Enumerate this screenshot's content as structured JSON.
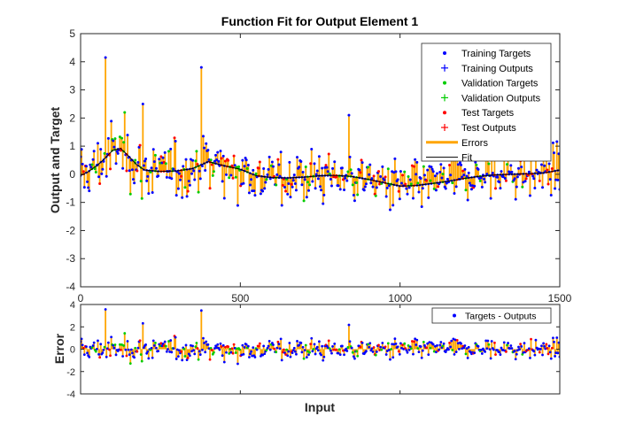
{
  "chart_data": [
    {
      "type": "scatter",
      "title": "Function Fit for Output Element 1",
      "xlabel": "",
      "ylabel": "Output and Target",
      "xlim": [
        0,
        1500
      ],
      "ylim": [
        -4,
        5
      ],
      "x_ticks": [
        0,
        500,
        1000,
        1500
      ],
      "y_ticks": [
        -4,
        -3,
        -2,
        -1,
        0,
        1,
        2,
        3,
        4,
        5
      ],
      "legend_placement": "top-right",
      "legend": [
        {
          "label": "Training Targets",
          "marker": "dot",
          "color": "#0000ff"
        },
        {
          "label": "Training Outputs",
          "marker": "plus",
          "color": "#0000ff"
        },
        {
          "label": "Validation Targets",
          "marker": "dot",
          "color": "#00cc00"
        },
        {
          "label": "Validation Outputs",
          "marker": "plus",
          "color": "#00cc00"
        },
        {
          "label": "Test Targets",
          "marker": "dot",
          "color": "#ff0000"
        },
        {
          "label": "Test Outputs",
          "marker": "plus",
          "color": "#ff0000"
        },
        {
          "label": "Errors",
          "marker": "line",
          "color": "#ffa500"
        },
        {
          "label": "Fit",
          "marker": "line",
          "color": "#000000"
        }
      ],
      "fit_curve": {
        "x": [
          0,
          25,
          50,
          75,
          100,
          125,
          150,
          175,
          200,
          250,
          300,
          350,
          400,
          450,
          500,
          550,
          600,
          650,
          700,
          750,
          800,
          850,
          900,
          950,
          1000,
          1050,
          1100,
          1150,
          1200,
          1250,
          1300,
          1350,
          1400,
          1450,
          1500
        ],
        "y": [
          -0.05,
          0.1,
          0.3,
          0.55,
          0.85,
          0.92,
          0.65,
          0.35,
          0.15,
          0.1,
          0.12,
          0.2,
          0.45,
          0.3,
          0.18,
          -0.05,
          -0.12,
          -0.13,
          -0.1,
          -0.05,
          -0.04,
          -0.08,
          -0.18,
          -0.3,
          -0.42,
          -0.4,
          -0.33,
          -0.25,
          -0.15,
          -0.07,
          -0.02,
          0.0,
          0.02,
          0.05,
          0.15
        ]
      }
    },
    {
      "type": "scatter",
      "title": "",
      "xlabel": "Input",
      "ylabel": "Error",
      "xlim": [
        0,
        1500
      ],
      "ylim": [
        -4,
        4
      ],
      "y_ticks": [
        -4,
        -2,
        0,
        2,
        4
      ],
      "legend_placement": "top-right",
      "legend": [
        {
          "label": "Targets - Outputs",
          "marker": "dot",
          "color": "#0000ff"
        }
      ]
    }
  ],
  "colors": {
    "training": "#0000ff",
    "validation": "#00cc00",
    "test": "#ff0000",
    "errors": "#ffa500",
    "fit": "#000000"
  }
}
